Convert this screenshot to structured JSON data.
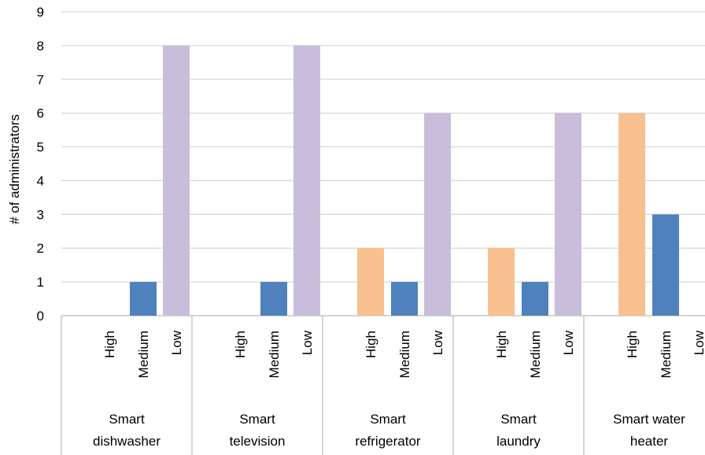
{
  "chart_data": {
    "type": "bar",
    "ylabel": "# of administrators",
    "ylim": [
      0,
      9
    ],
    "yticks": [
      0,
      1,
      2,
      3,
      4,
      5,
      6,
      7,
      8,
      9
    ],
    "grid": true,
    "levels": [
      "High",
      "Medium",
      "Low"
    ],
    "level_colors": {
      "High": "#f8c08e",
      "Medium": "#4f81bd",
      "Low": "#c8bedb"
    },
    "groups": [
      {
        "label": [
          "Smart",
          "dishwasher"
        ],
        "values": {
          "High": 0,
          "Medium": 1,
          "Low": 8
        }
      },
      {
        "label": [
          "Smart",
          "television"
        ],
        "values": {
          "High": 0,
          "Medium": 1,
          "Low": 8
        }
      },
      {
        "label": [
          "Smart",
          "refrigerator"
        ],
        "values": {
          "High": 2,
          "Medium": 1,
          "Low": 6
        }
      },
      {
        "label": [
          "Smart",
          "laundry"
        ],
        "values": {
          "High": 2,
          "Medium": 1,
          "Low": 6
        }
      },
      {
        "label": [
          "Smart water",
          "heater"
        ],
        "values": {
          "High": 6,
          "Medium": 3,
          "Low": 0
        }
      }
    ]
  }
}
